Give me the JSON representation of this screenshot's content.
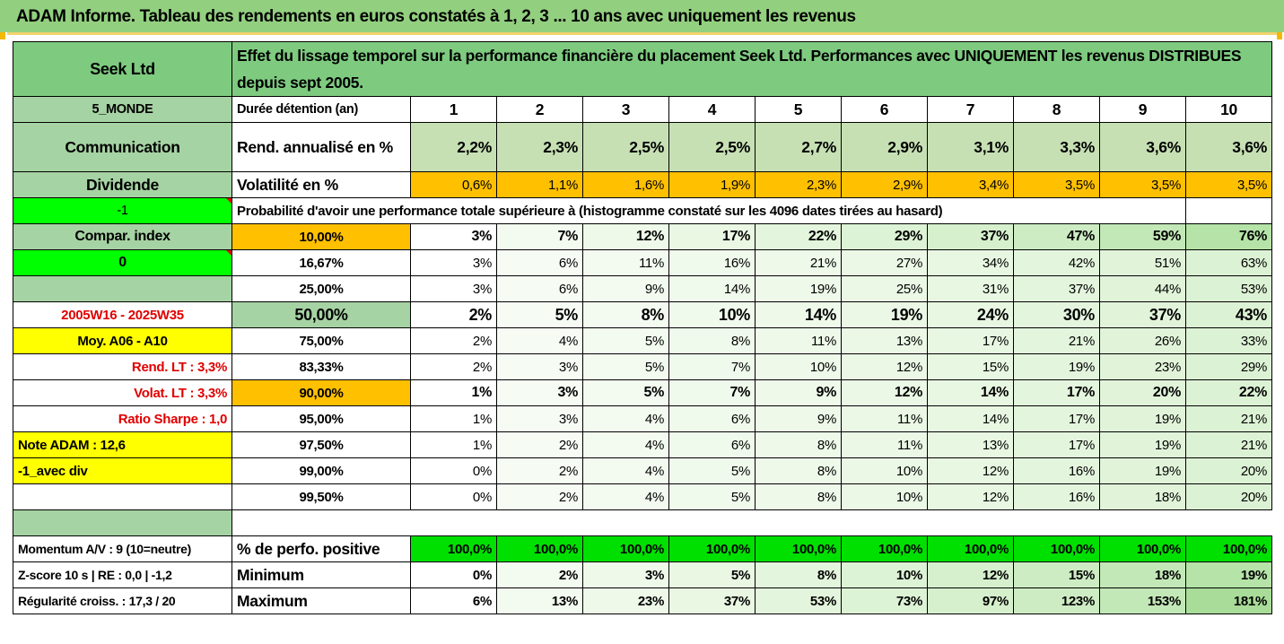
{
  "title": "ADAM Informe. Tableau des rendements en euros constatés à 1, 2, 3 ... 10 ans avec uniquement les revenus",
  "colors": {
    "title_green": "#92d07f",
    "header_green": "#7ecb80",
    "orange": "#ffc000",
    "bright_green": "#00ff00",
    "yellow": "#ffff00",
    "red_text": "#e00000"
  },
  "header": {
    "fund_name": "Seek Ltd",
    "description": "Effet du lissage temporel sur la performance financière du placement Seek Ltd. Performances avec UNIQUEMENT les revenus DISTRIBUES depuis sept 2005."
  },
  "side": {
    "zone": "5_MONDE",
    "sector": "Communication",
    "type": "Dividende",
    "flag1": "-1",
    "compar_label": "Compar. index",
    "flag2": "0",
    "period": "2005W16 - 2025W35",
    "moy": "Moy. A06 - A10",
    "rend_lt": "Rend. LT :    3,3%",
    "volat_lt": "Volat. LT :    3,3%",
    "sharpe": "Ratio Sharpe :    1,0",
    "note": "Note ADAM : 12,6",
    "div": "-1_avec div",
    "momentum": "Momentum A/V : 9 (10=neutre)",
    "zscore": "Z-score 10 s  |  RE : 0,0  |  -1,2",
    "regularite": "Régularité croiss. : 17,3 / 20"
  },
  "rows": {
    "duree_label": "Durée détention (an)",
    "years": [
      "1",
      "2",
      "3",
      "4",
      "5",
      "6",
      "7",
      "8",
      "9",
      "10"
    ],
    "rend_label": "Rend. annualisé en %",
    "rend": [
      "2,2%",
      "2,3%",
      "2,5%",
      "2,5%",
      "2,7%",
      "2,9%",
      "3,1%",
      "3,3%",
      "3,6%",
      "3,6%"
    ],
    "vol_label": "Volatilité en %",
    "vol": [
      "0,6%",
      "1,1%",
      "1,6%",
      "1,9%",
      "2,3%",
      "2,9%",
      "3,4%",
      "3,5%",
      "3,5%",
      "3,5%"
    ],
    "proba_label": "Probabilité d'avoir une performance totale supérieure à (histogramme constaté sur les 4096 dates tirées au hasard)"
  },
  "prob_table": [
    {
      "threshold": "10,00%",
      "values": [
        "3%",
        "7%",
        "12%",
        "17%",
        "22%",
        "29%",
        "37%",
        "47%",
        "59%",
        "76%"
      ]
    },
    {
      "threshold": "16,67%",
      "values": [
        "3%",
        "6%",
        "11%",
        "16%",
        "21%",
        "27%",
        "34%",
        "42%",
        "51%",
        "63%"
      ]
    },
    {
      "threshold": "25,00%",
      "values": [
        "3%",
        "6%",
        "9%",
        "14%",
        "19%",
        "25%",
        "31%",
        "37%",
        "44%",
        "53%"
      ]
    },
    {
      "threshold": "50,00%",
      "values": [
        "2%",
        "5%",
        "8%",
        "10%",
        "14%",
        "19%",
        "24%",
        "30%",
        "37%",
        "43%"
      ]
    },
    {
      "threshold": "75,00%",
      "values": [
        "2%",
        "4%",
        "5%",
        "8%",
        "11%",
        "13%",
        "17%",
        "21%",
        "26%",
        "33%"
      ]
    },
    {
      "threshold": "83,33%",
      "values": [
        "2%",
        "3%",
        "5%",
        "7%",
        "10%",
        "12%",
        "15%",
        "19%",
        "23%",
        "29%"
      ]
    },
    {
      "threshold": "90,00%",
      "values": [
        "1%",
        "3%",
        "5%",
        "7%",
        "9%",
        "12%",
        "14%",
        "17%",
        "20%",
        "22%"
      ]
    },
    {
      "threshold": "95,00%",
      "values": [
        "1%",
        "3%",
        "4%",
        "6%",
        "9%",
        "11%",
        "14%",
        "17%",
        "19%",
        "21%"
      ]
    },
    {
      "threshold": "97,50%",
      "values": [
        "1%",
        "2%",
        "4%",
        "6%",
        "8%",
        "11%",
        "13%",
        "17%",
        "19%",
        "21%"
      ]
    },
    {
      "threshold": "99,00%",
      "values": [
        "0%",
        "2%",
        "4%",
        "5%",
        "8%",
        "10%",
        "12%",
        "16%",
        "19%",
        "20%"
      ]
    },
    {
      "threshold": "99,50%",
      "values": [
        "0%",
        "2%",
        "4%",
        "5%",
        "8%",
        "10%",
        "12%",
        "16%",
        "18%",
        "20%"
      ]
    }
  ],
  "bottom": {
    "pos_label": "% de perfo. positive",
    "pos": [
      "100,0%",
      "100,0%",
      "100,0%",
      "100,0%",
      "100,0%",
      "100,0%",
      "100,0%",
      "100,0%",
      "100,0%",
      "100,0%"
    ],
    "min_label": "Minimum",
    "min": [
      "0%",
      "2%",
      "3%",
      "5%",
      "8%",
      "10%",
      "12%",
      "15%",
      "18%",
      "19%"
    ],
    "max_label": "Maximum",
    "max": [
      "6%",
      "13%",
      "23%",
      "37%",
      "53%",
      "73%",
      "97%",
      "123%",
      "153%",
      "181%"
    ]
  }
}
